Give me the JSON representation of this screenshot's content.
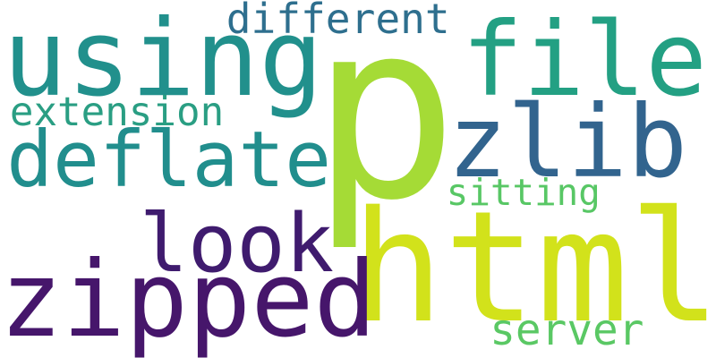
{
  "word_cloud": {
    "words": [
      {
        "id": "p",
        "text": "p",
        "color": "#a5db36"
      },
      {
        "id": "html",
        "text": "html",
        "color": "#d2e21b"
      },
      {
        "id": "using",
        "text": "using",
        "color": "#21908c"
      },
      {
        "id": "zipped",
        "text": "zipped",
        "color": "#46166b"
      },
      {
        "id": "file",
        "text": "file",
        "color": "#23a083"
      },
      {
        "id": "deflate",
        "text": "deflate",
        "color": "#218e8d"
      },
      {
        "id": "zlib",
        "text": "zlib",
        "color": "#32648e"
      },
      {
        "id": "look",
        "text": "look",
        "color": "#3f1b6e"
      },
      {
        "id": "different",
        "text": "different",
        "color": "#2e6f8e"
      },
      {
        "id": "extension",
        "text": "extension",
        "color": "#2a9e83"
      },
      {
        "id": "sitting",
        "text": "sitting",
        "color": "#58c765"
      },
      {
        "id": "server",
        "text": "server",
        "color": "#5ac864"
      }
    ]
  }
}
